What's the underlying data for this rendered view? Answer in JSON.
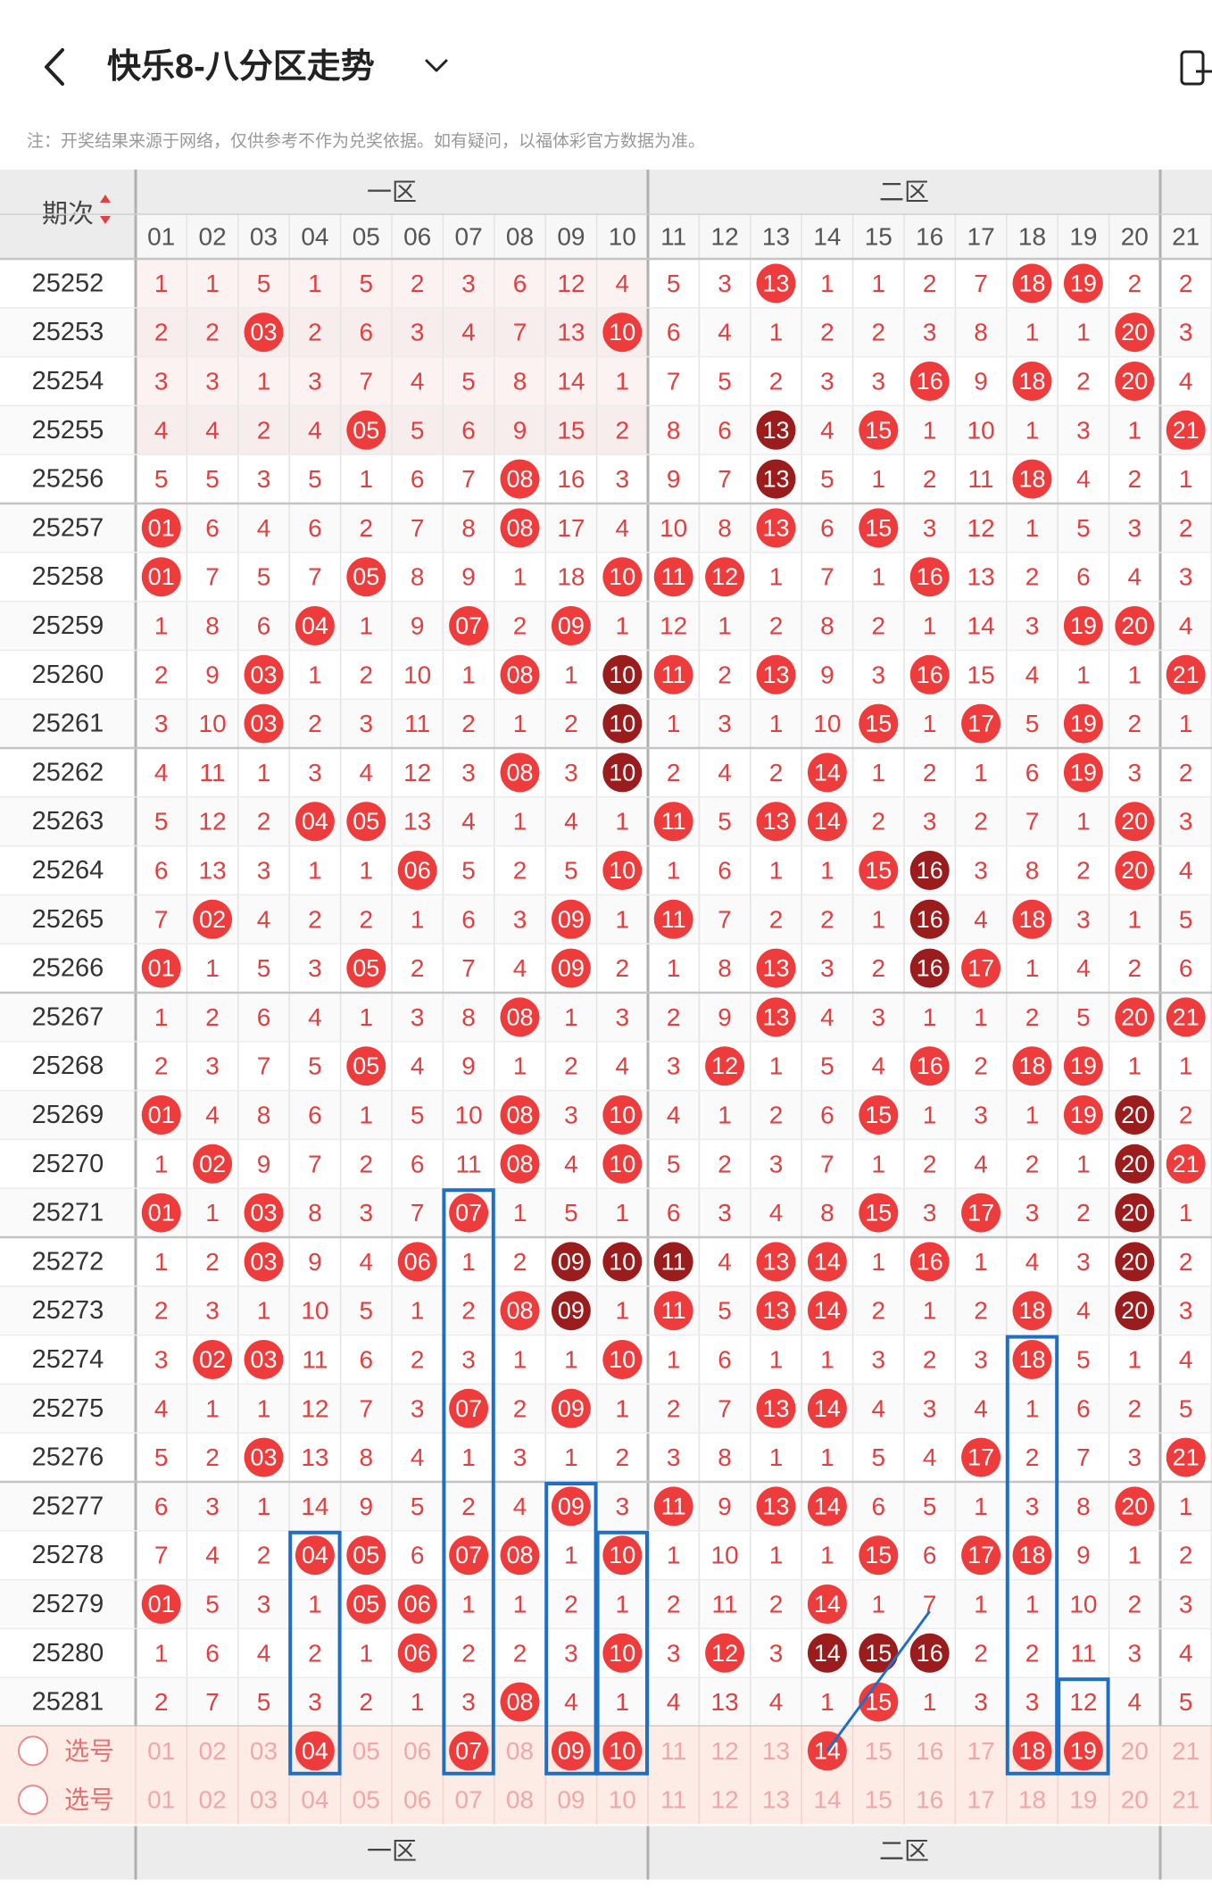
{
  "header": {
    "title": "快乐8-八分区走势",
    "back_icon": "chevron-left-icon",
    "dropdown_icon": "chevron-down-icon",
    "right_icon": "device-icon"
  },
  "note": "注：开奖结果来源于网络，仅供参考不作为兑奖依据。如有疑问，以福体彩官方数据为准。",
  "table": {
    "period_label": "期次",
    "zones": [
      "一区",
      "二区"
    ],
    "numbers": [
      "01",
      "02",
      "03",
      "04",
      "05",
      "06",
      "07",
      "08",
      "09",
      "10",
      "11",
      "12",
      "13",
      "14",
      "15",
      "16",
      "17",
      "18",
      "19",
      "20",
      "21"
    ],
    "rows": [
      {
        "period": "25252",
        "cells": [
          "1",
          "1",
          "5",
          "1",
          "5",
          "2",
          "3",
          "6",
          "12",
          "4",
          "5",
          "3",
          "13",
          "1",
          "1",
          "2",
          "7",
          "18",
          "19",
          "2",
          "2"
        ]
      },
      {
        "period": "25253",
        "cells": [
          "2",
          "2",
          "03",
          "2",
          "6",
          "3",
          "4",
          "7",
          "13",
          "10",
          "6",
          "4",
          "1",
          "2",
          "2",
          "3",
          "8",
          "1",
          "1",
          "20",
          "3"
        ]
      },
      {
        "period": "25254",
        "cells": [
          "3",
          "3",
          "1",
          "3",
          "7",
          "4",
          "5",
          "8",
          "14",
          "1",
          "7",
          "5",
          "2",
          "3",
          "3",
          "16",
          "9",
          "18",
          "2",
          "20",
          "4"
        ]
      },
      {
        "period": "25255",
        "cells": [
          "4",
          "4",
          "2",
          "4",
          "05",
          "5",
          "6",
          "9",
          "15",
          "2",
          "8",
          "6",
          "13",
          "4",
          "15",
          "1",
          "10",
          "1",
          "3",
          "1",
          "21"
        ]
      },
      {
        "period": "25256",
        "cells": [
          "5",
          "5",
          "3",
          "5",
          "1",
          "6",
          "7",
          "08",
          "16",
          "3",
          "9",
          "7",
          "13",
          "5",
          "1",
          "2",
          "11",
          "18",
          "4",
          "2",
          "1"
        ]
      },
      {
        "period": "25257",
        "cells": [
          "01",
          "6",
          "4",
          "6",
          "2",
          "7",
          "8",
          "08",
          "17",
          "4",
          "10",
          "8",
          "13",
          "6",
          "15",
          "3",
          "12",
          "1",
          "5",
          "3",
          "2"
        ]
      },
      {
        "period": "25258",
        "cells": [
          "01",
          "7",
          "5",
          "7",
          "05",
          "8",
          "9",
          "1",
          "18",
          "10",
          "11",
          "12",
          "1",
          "7",
          "1",
          "16",
          "13",
          "2",
          "6",
          "4",
          "3"
        ]
      },
      {
        "period": "25259",
        "cells": [
          "1",
          "8",
          "6",
          "04",
          "1",
          "9",
          "07",
          "2",
          "09",
          "1",
          "12",
          "1",
          "2",
          "8",
          "2",
          "1",
          "14",
          "3",
          "19",
          "20",
          "4"
        ]
      },
      {
        "period": "25260",
        "cells": [
          "2",
          "9",
          "03",
          "1",
          "2",
          "10",
          "1",
          "08",
          "1",
          "10",
          "11",
          "2",
          "13",
          "9",
          "3",
          "16",
          "15",
          "4",
          "1",
          "1",
          "21"
        ]
      },
      {
        "period": "25261",
        "cells": [
          "3",
          "10",
          "03",
          "2",
          "3",
          "11",
          "2",
          "1",
          "2",
          "10",
          "1",
          "3",
          "1",
          "10",
          "15",
          "1",
          "17",
          "5",
          "19",
          "2",
          "1"
        ]
      },
      {
        "period": "25262",
        "cells": [
          "4",
          "11",
          "1",
          "3",
          "4",
          "12",
          "3",
          "08",
          "3",
          "10",
          "2",
          "4",
          "2",
          "14",
          "1",
          "2",
          "1",
          "6",
          "19",
          "3",
          "2"
        ]
      },
      {
        "period": "25263",
        "cells": [
          "5",
          "12",
          "2",
          "04",
          "05",
          "13",
          "4",
          "1",
          "4",
          "1",
          "11",
          "5",
          "13",
          "14",
          "2",
          "3",
          "2",
          "7",
          "1",
          "20",
          "3"
        ]
      },
      {
        "period": "25264",
        "cells": [
          "6",
          "13",
          "3",
          "1",
          "1",
          "06",
          "5",
          "2",
          "5",
          "10",
          "1",
          "6",
          "1",
          "1",
          "15",
          "16",
          "3",
          "8",
          "2",
          "20",
          "4"
        ]
      },
      {
        "period": "25265",
        "cells": [
          "7",
          "02",
          "4",
          "2",
          "2",
          "1",
          "6",
          "3",
          "09",
          "1",
          "11",
          "7",
          "2",
          "2",
          "1",
          "16",
          "4",
          "18",
          "3",
          "1",
          "5"
        ]
      },
      {
        "period": "25266",
        "cells": [
          "01",
          "1",
          "5",
          "3",
          "05",
          "2",
          "7",
          "4",
          "09",
          "2",
          "1",
          "8",
          "13",
          "3",
          "2",
          "16",
          "17",
          "1",
          "4",
          "2",
          "6"
        ]
      },
      {
        "period": "25267",
        "cells": [
          "1",
          "2",
          "6",
          "4",
          "1",
          "3",
          "8",
          "08",
          "1",
          "3",
          "2",
          "9",
          "13",
          "4",
          "3",
          "1",
          "1",
          "2",
          "5",
          "20",
          "21"
        ]
      },
      {
        "period": "25268",
        "cells": [
          "2",
          "3",
          "7",
          "5",
          "05",
          "4",
          "9",
          "1",
          "2",
          "4",
          "3",
          "12",
          "1",
          "5",
          "4",
          "16",
          "2",
          "18",
          "19",
          "1",
          "1"
        ]
      },
      {
        "period": "25269",
        "cells": [
          "01",
          "4",
          "8",
          "6",
          "1",
          "5",
          "10",
          "08",
          "3",
          "10",
          "4",
          "1",
          "2",
          "6",
          "15",
          "1",
          "3",
          "1",
          "19",
          "20",
          "2"
        ]
      },
      {
        "period": "25270",
        "cells": [
          "1",
          "02",
          "9",
          "7",
          "2",
          "6",
          "11",
          "08",
          "4",
          "10",
          "5",
          "2",
          "3",
          "7",
          "1",
          "2",
          "4",
          "2",
          "1",
          "20",
          "21"
        ]
      },
      {
        "period": "25271",
        "cells": [
          "01",
          "1",
          "03",
          "8",
          "3",
          "7",
          "07",
          "1",
          "5",
          "1",
          "6",
          "3",
          "4",
          "8",
          "15",
          "3",
          "17",
          "3",
          "2",
          "20",
          "1"
        ]
      },
      {
        "period": "25272",
        "cells": [
          "1",
          "2",
          "03",
          "9",
          "4",
          "06",
          "1",
          "2",
          "09",
          "10",
          "11",
          "4",
          "13",
          "14",
          "1",
          "16",
          "1",
          "4",
          "3",
          "20",
          "2"
        ]
      },
      {
        "period": "25273",
        "cells": [
          "2",
          "3",
          "1",
          "10",
          "5",
          "1",
          "2",
          "08",
          "09",
          "1",
          "11",
          "5",
          "13",
          "14",
          "2",
          "1",
          "2",
          "18",
          "4",
          "20",
          "3"
        ]
      },
      {
        "period": "25274",
        "cells": [
          "3",
          "02",
          "03",
          "11",
          "6",
          "2",
          "3",
          "1",
          "1",
          "10",
          "1",
          "6",
          "1",
          "1",
          "3",
          "2",
          "3",
          "18",
          "5",
          "1",
          "4"
        ]
      },
      {
        "period": "25275",
        "cells": [
          "4",
          "1",
          "1",
          "12",
          "7",
          "3",
          "07",
          "2",
          "09",
          "1",
          "2",
          "7",
          "13",
          "14",
          "4",
          "3",
          "4",
          "1",
          "6",
          "2",
          "5"
        ]
      },
      {
        "period": "25276",
        "cells": [
          "5",
          "2",
          "03",
          "13",
          "8",
          "4",
          "1",
          "3",
          "1",
          "2",
          "3",
          "8",
          "1",
          "1",
          "5",
          "4",
          "17",
          "2",
          "7",
          "3",
          "21"
        ]
      },
      {
        "period": "25277",
        "cells": [
          "6",
          "3",
          "1",
          "14",
          "9",
          "5",
          "2",
          "4",
          "09",
          "3",
          "11",
          "9",
          "13",
          "14",
          "6",
          "5",
          "1",
          "3",
          "8",
          "20",
          "1"
        ]
      },
      {
        "period": "25278",
        "cells": [
          "7",
          "4",
          "2",
          "04",
          "05",
          "6",
          "07",
          "08",
          "1",
          "10",
          "1",
          "10",
          "1",
          "1",
          "15",
          "6",
          "17",
          "18",
          "9",
          "1",
          "2"
        ]
      },
      {
        "period": "25279",
        "cells": [
          "01",
          "5",
          "3",
          "1",
          "05",
          "06",
          "1",
          "1",
          "2",
          "1",
          "2",
          "11",
          "2",
          "14",
          "1",
          "7",
          "1",
          "1",
          "10",
          "2",
          "3"
        ]
      },
      {
        "period": "25280",
        "cells": [
          "1",
          "6",
          "4",
          "2",
          "1",
          "06",
          "2",
          "2",
          "3",
          "10",
          "3",
          "12",
          "3",
          "14",
          "15",
          "16",
          "2",
          "2",
          "11",
          "3",
          "4"
        ]
      },
      {
        "period": "25281",
        "cells": [
          "2",
          "7",
          "5",
          "3",
          "2",
          "1",
          "3",
          "08",
          "4",
          "1",
          "4",
          "13",
          "4",
          "1",
          "15",
          "1",
          "3",
          "3",
          "12",
          "4",
          "5"
        ]
      }
    ],
    "highlight_dark": [
      [
        2,
        12
      ],
      [
        3,
        12
      ],
      [
        4,
        12
      ],
      [
        8,
        9
      ],
      [
        9,
        9
      ],
      [
        10,
        9
      ],
      [
        12,
        15
      ],
      [
        13,
        15
      ],
      [
        14,
        15
      ],
      [
        17,
        19
      ],
      [
        18,
        19
      ],
      [
        19,
        19
      ],
      [
        20,
        8
      ],
      [
        20,
        9
      ],
      [
        20,
        10
      ],
      [
        20,
        19
      ],
      [
        21,
        19
      ],
      [
        21,
        8
      ],
      [
        28,
        13
      ],
      [
        28,
        14
      ],
      [
        28,
        15
      ]
    ],
    "select_rows": [
      {
        "label": "选号",
        "selected": [
          "04",
          "07",
          "09",
          "10",
          "14",
          "18",
          "19"
        ]
      },
      {
        "label": "选号",
        "selected": []
      }
    ],
    "footer_zones": [
      "一区",
      "二区"
    ]
  },
  "colors": {
    "ball_red": "#ee3b3b",
    "ball_dark": "#9b1c1c",
    "cell_text_red": "#e04040",
    "box_blue": "#1f6fc5",
    "header_bg": "#ececec",
    "select_bg": "#fdece6"
  }
}
